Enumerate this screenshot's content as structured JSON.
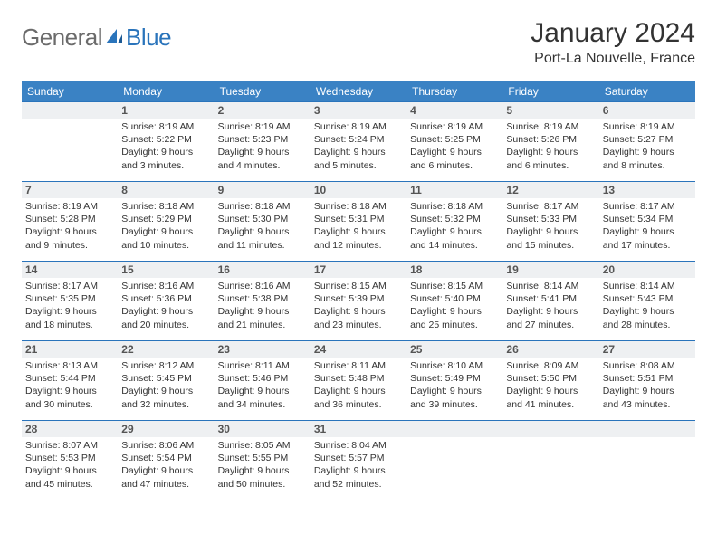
{
  "brand": {
    "part1": "General",
    "part2": "Blue"
  },
  "title": "January 2024",
  "location": "Port-La Nouvelle, France",
  "colors": {
    "header_bg": "#3a82c4",
    "accent_line": "#2a74bb",
    "daynum_bg": "#eef0f2",
    "logo_gray": "#6b6b6b",
    "logo_blue": "#2a74bb",
    "text": "#333333",
    "background": "#ffffff"
  },
  "day_labels": [
    "Sunday",
    "Monday",
    "Tuesday",
    "Wednesday",
    "Thursday",
    "Friday",
    "Saturday"
  ],
  "weeks": [
    [
      {
        "blank": true
      },
      {
        "n": "1",
        "sr": "Sunrise: 8:19 AM",
        "ss": "Sunset: 5:22 PM",
        "d1": "Daylight: 9 hours",
        "d2": "and 3 minutes."
      },
      {
        "n": "2",
        "sr": "Sunrise: 8:19 AM",
        "ss": "Sunset: 5:23 PM",
        "d1": "Daylight: 9 hours",
        "d2": "and 4 minutes."
      },
      {
        "n": "3",
        "sr": "Sunrise: 8:19 AM",
        "ss": "Sunset: 5:24 PM",
        "d1": "Daylight: 9 hours",
        "d2": "and 5 minutes."
      },
      {
        "n": "4",
        "sr": "Sunrise: 8:19 AM",
        "ss": "Sunset: 5:25 PM",
        "d1": "Daylight: 9 hours",
        "d2": "and 6 minutes."
      },
      {
        "n": "5",
        "sr": "Sunrise: 8:19 AM",
        "ss": "Sunset: 5:26 PM",
        "d1": "Daylight: 9 hours",
        "d2": "and 6 minutes."
      },
      {
        "n": "6",
        "sr": "Sunrise: 8:19 AM",
        "ss": "Sunset: 5:27 PM",
        "d1": "Daylight: 9 hours",
        "d2": "and 8 minutes."
      }
    ],
    [
      {
        "n": "7",
        "sr": "Sunrise: 8:19 AM",
        "ss": "Sunset: 5:28 PM",
        "d1": "Daylight: 9 hours",
        "d2": "and 9 minutes."
      },
      {
        "n": "8",
        "sr": "Sunrise: 8:18 AM",
        "ss": "Sunset: 5:29 PM",
        "d1": "Daylight: 9 hours",
        "d2": "and 10 minutes."
      },
      {
        "n": "9",
        "sr": "Sunrise: 8:18 AM",
        "ss": "Sunset: 5:30 PM",
        "d1": "Daylight: 9 hours",
        "d2": "and 11 minutes."
      },
      {
        "n": "10",
        "sr": "Sunrise: 8:18 AM",
        "ss": "Sunset: 5:31 PM",
        "d1": "Daylight: 9 hours",
        "d2": "and 12 minutes."
      },
      {
        "n": "11",
        "sr": "Sunrise: 8:18 AM",
        "ss": "Sunset: 5:32 PM",
        "d1": "Daylight: 9 hours",
        "d2": "and 14 minutes."
      },
      {
        "n": "12",
        "sr": "Sunrise: 8:17 AM",
        "ss": "Sunset: 5:33 PM",
        "d1": "Daylight: 9 hours",
        "d2": "and 15 minutes."
      },
      {
        "n": "13",
        "sr": "Sunrise: 8:17 AM",
        "ss": "Sunset: 5:34 PM",
        "d1": "Daylight: 9 hours",
        "d2": "and 17 minutes."
      }
    ],
    [
      {
        "n": "14",
        "sr": "Sunrise: 8:17 AM",
        "ss": "Sunset: 5:35 PM",
        "d1": "Daylight: 9 hours",
        "d2": "and 18 minutes."
      },
      {
        "n": "15",
        "sr": "Sunrise: 8:16 AM",
        "ss": "Sunset: 5:36 PM",
        "d1": "Daylight: 9 hours",
        "d2": "and 20 minutes."
      },
      {
        "n": "16",
        "sr": "Sunrise: 8:16 AM",
        "ss": "Sunset: 5:38 PM",
        "d1": "Daylight: 9 hours",
        "d2": "and 21 minutes."
      },
      {
        "n": "17",
        "sr": "Sunrise: 8:15 AM",
        "ss": "Sunset: 5:39 PM",
        "d1": "Daylight: 9 hours",
        "d2": "and 23 minutes."
      },
      {
        "n": "18",
        "sr": "Sunrise: 8:15 AM",
        "ss": "Sunset: 5:40 PM",
        "d1": "Daylight: 9 hours",
        "d2": "and 25 minutes."
      },
      {
        "n": "19",
        "sr": "Sunrise: 8:14 AM",
        "ss": "Sunset: 5:41 PM",
        "d1": "Daylight: 9 hours",
        "d2": "and 27 minutes."
      },
      {
        "n": "20",
        "sr": "Sunrise: 8:14 AM",
        "ss": "Sunset: 5:43 PM",
        "d1": "Daylight: 9 hours",
        "d2": "and 28 minutes."
      }
    ],
    [
      {
        "n": "21",
        "sr": "Sunrise: 8:13 AM",
        "ss": "Sunset: 5:44 PM",
        "d1": "Daylight: 9 hours",
        "d2": "and 30 minutes."
      },
      {
        "n": "22",
        "sr": "Sunrise: 8:12 AM",
        "ss": "Sunset: 5:45 PM",
        "d1": "Daylight: 9 hours",
        "d2": "and 32 minutes."
      },
      {
        "n": "23",
        "sr": "Sunrise: 8:11 AM",
        "ss": "Sunset: 5:46 PM",
        "d1": "Daylight: 9 hours",
        "d2": "and 34 minutes."
      },
      {
        "n": "24",
        "sr": "Sunrise: 8:11 AM",
        "ss": "Sunset: 5:48 PM",
        "d1": "Daylight: 9 hours",
        "d2": "and 36 minutes."
      },
      {
        "n": "25",
        "sr": "Sunrise: 8:10 AM",
        "ss": "Sunset: 5:49 PM",
        "d1": "Daylight: 9 hours",
        "d2": "and 39 minutes."
      },
      {
        "n": "26",
        "sr": "Sunrise: 8:09 AM",
        "ss": "Sunset: 5:50 PM",
        "d1": "Daylight: 9 hours",
        "d2": "and 41 minutes."
      },
      {
        "n": "27",
        "sr": "Sunrise: 8:08 AM",
        "ss": "Sunset: 5:51 PM",
        "d1": "Daylight: 9 hours",
        "d2": "and 43 minutes."
      }
    ],
    [
      {
        "n": "28",
        "sr": "Sunrise: 8:07 AM",
        "ss": "Sunset: 5:53 PM",
        "d1": "Daylight: 9 hours",
        "d2": "and 45 minutes."
      },
      {
        "n": "29",
        "sr": "Sunrise: 8:06 AM",
        "ss": "Sunset: 5:54 PM",
        "d1": "Daylight: 9 hours",
        "d2": "and 47 minutes."
      },
      {
        "n": "30",
        "sr": "Sunrise: 8:05 AM",
        "ss": "Sunset: 5:55 PM",
        "d1": "Daylight: 9 hours",
        "d2": "and 50 minutes."
      },
      {
        "n": "31",
        "sr": "Sunrise: 8:04 AM",
        "ss": "Sunset: 5:57 PM",
        "d1": "Daylight: 9 hours",
        "d2": "and 52 minutes."
      },
      {
        "blank": true
      },
      {
        "blank": true
      },
      {
        "blank": true
      }
    ]
  ]
}
